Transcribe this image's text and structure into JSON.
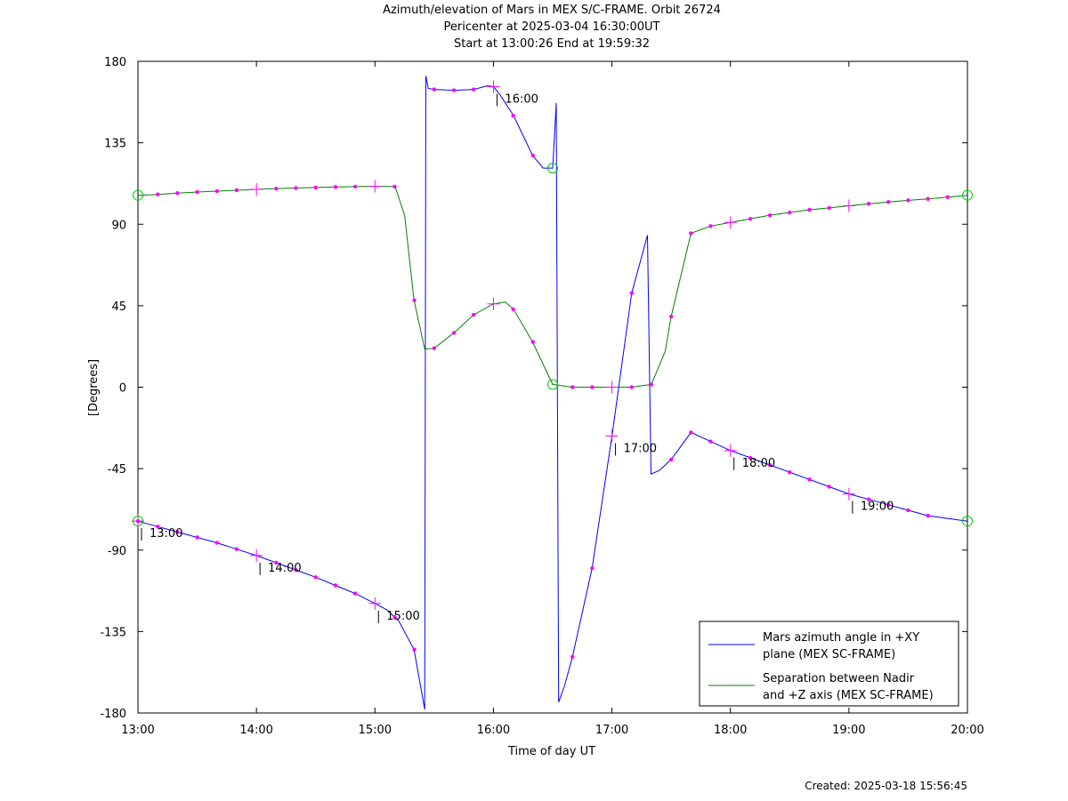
{
  "chart_data": {
    "type": "line",
    "title": "Azimuth/elevation of Mars in MEX S/C-FRAME.  Orbit 26724",
    "subtitle_lines": [
      "Pericenter at 2025-03-04 16:30:00UT",
      "Start at 13:00:26 End at 19:59:32"
    ],
    "xlabel": "Time of day UT",
    "ylabel": "[Degrees]",
    "xlim": [
      13.0,
      20.0
    ],
    "ylim": [
      -180,
      180
    ],
    "x_ticks": [
      {
        "value": 13,
        "label": "13:00"
      },
      {
        "value": 14,
        "label": "14:00"
      },
      {
        "value": 15,
        "label": "15:00"
      },
      {
        "value": 16,
        "label": "16:00"
      },
      {
        "value": 17,
        "label": "17:00"
      },
      {
        "value": 18,
        "label": "18:00"
      },
      {
        "value": 19,
        "label": "19:00"
      },
      {
        "value": 20,
        "label": "20:00"
      }
    ],
    "y_ticks": [
      {
        "value": 180,
        "label": "180"
      },
      {
        "value": 135,
        "label": "135"
      },
      {
        "value": 90,
        "label": "90"
      },
      {
        "value": 45,
        "label": "45"
      },
      {
        "value": 0,
        "label": "0"
      },
      {
        "value": -45,
        "label": "-45"
      },
      {
        "value": -90,
        "label": "-90"
      },
      {
        "value": -135,
        "label": "-135"
      },
      {
        "value": -180,
        "label": "-180"
      }
    ],
    "grid": false,
    "legend_position": "bottom-right",
    "series": [
      {
        "name": "Mars azimuth angle in +XY plane (MEX SC-FRAME)",
        "legend_lines": [
          "Mars azimuth angle in +XY",
          "plane (MEX SC-FRAME)"
        ],
        "color": "#0000ff",
        "points": [
          [
            13.0,
            -74
          ],
          [
            13.167,
            -77
          ],
          [
            13.333,
            -80
          ],
          [
            13.5,
            -83
          ],
          [
            13.667,
            -86
          ],
          [
            13.833,
            -89.5
          ],
          [
            14.0,
            -93
          ],
          [
            14.167,
            -97
          ],
          [
            14.333,
            -101
          ],
          [
            14.5,
            -105
          ],
          [
            14.667,
            -109.5
          ],
          [
            14.833,
            -114
          ],
          [
            15.0,
            -119.5
          ],
          [
            15.1,
            -123
          ],
          [
            15.2,
            -129
          ],
          [
            15.33,
            -145
          ],
          [
            15.42,
            -178
          ],
          [
            15.43,
            172
          ],
          [
            15.45,
            165
          ],
          [
            15.5,
            164.5
          ],
          [
            15.667,
            164
          ],
          [
            15.833,
            164.5
          ],
          [
            15.95,
            166.5
          ],
          [
            16.0,
            166
          ],
          [
            16.05,
            162
          ],
          [
            16.17,
            150
          ],
          [
            16.33,
            128
          ],
          [
            16.42,
            121
          ],
          [
            16.5,
            121
          ],
          [
            16.53,
            157
          ],
          [
            16.55,
            -174
          ],
          [
            16.6,
            -165
          ],
          [
            16.667,
            -149
          ],
          [
            16.833,
            -100
          ],
          [
            17.0,
            -27
          ],
          [
            17.167,
            52
          ],
          [
            17.3,
            84
          ],
          [
            17.33,
            -48
          ],
          [
            17.4,
            -46
          ],
          [
            17.5,
            -40
          ],
          [
            17.667,
            -25
          ],
          [
            17.833,
            -30
          ],
          [
            18.0,
            -35
          ],
          [
            18.167,
            -39
          ],
          [
            18.333,
            -43
          ],
          [
            18.5,
            -47
          ],
          [
            18.667,
            -51
          ],
          [
            18.833,
            -55
          ],
          [
            19.0,
            -59
          ],
          [
            19.167,
            -62
          ],
          [
            19.333,
            -65
          ],
          [
            19.5,
            -68
          ],
          [
            19.667,
            -71
          ],
          [
            20.0,
            -74
          ]
        ],
        "markers": [
          [
            13.0,
            -74
          ],
          [
            13.167,
            -77
          ],
          [
            13.333,
            -80
          ],
          [
            13.5,
            -83
          ],
          [
            13.667,
            -86
          ],
          [
            13.833,
            -89.5
          ],
          [
            14.167,
            -97
          ],
          [
            14.333,
            -101
          ],
          [
            14.5,
            -105
          ],
          [
            14.667,
            -109.5
          ],
          [
            14.833,
            -114
          ],
          [
            15.167,
            -127
          ],
          [
            15.333,
            -145
          ],
          [
            15.5,
            164.5
          ],
          [
            15.667,
            164
          ],
          [
            15.833,
            164.5
          ],
          [
            16.167,
            150
          ],
          [
            16.333,
            128
          ],
          [
            16.667,
            -149
          ],
          [
            16.833,
            -100
          ],
          [
            17.167,
            52
          ],
          [
            17.5,
            -40
          ],
          [
            17.667,
            -25
          ],
          [
            17.833,
            -30
          ],
          [
            18.167,
            -39
          ],
          [
            18.333,
            -43
          ],
          [
            18.5,
            -47
          ],
          [
            18.667,
            -51
          ],
          [
            18.833,
            -55
          ],
          [
            19.167,
            -62
          ],
          [
            19.333,
            -65
          ],
          [
            19.5,
            -68
          ],
          [
            19.667,
            -71
          ]
        ],
        "hour_markers": [
          {
            "x": 13.0,
            "y": -74,
            "label": "13:00"
          },
          {
            "x": 14.0,
            "y": -93,
            "label": "14:00"
          },
          {
            "x": 15.0,
            "y": -119.5,
            "label": "15:00"
          },
          {
            "x": 16.0,
            "y": 166,
            "label": "16:00"
          },
          {
            "x": 17.0,
            "y": -27,
            "label": "17:00"
          },
          {
            "x": 18.0,
            "y": -35,
            "label": "18:00"
          },
          {
            "x": 19.0,
            "y": -59,
            "label": "19:00"
          }
        ],
        "circles": [
          [
            13.0,
            -74
          ],
          [
            16.5,
            121
          ],
          [
            20.0,
            -74
          ]
        ]
      },
      {
        "name": "Separation between Nadir and +Z axis (MEX SC-FRAME)",
        "legend_lines": [
          "Separation between Nadir",
          "and +Z axis (MEX SC-FRAME)"
        ],
        "color": "#008000",
        "points": [
          [
            13.0,
            106
          ],
          [
            13.167,
            106.5
          ],
          [
            13.333,
            107.2
          ],
          [
            13.5,
            107.8
          ],
          [
            13.667,
            108.3
          ],
          [
            13.833,
            108.8
          ],
          [
            14.0,
            109.3
          ],
          [
            14.167,
            109.7
          ],
          [
            14.333,
            110
          ],
          [
            14.5,
            110.3
          ],
          [
            14.667,
            110.6
          ],
          [
            14.833,
            110.8
          ],
          [
            15.0,
            111
          ],
          [
            15.17,
            110.8
          ],
          [
            15.25,
            95
          ],
          [
            15.33,
            48
          ],
          [
            15.42,
            21
          ],
          [
            15.5,
            21.5
          ],
          [
            15.667,
            30
          ],
          [
            15.833,
            40
          ],
          [
            16.0,
            46
          ],
          [
            16.1,
            47
          ],
          [
            16.17,
            43
          ],
          [
            16.33,
            25
          ],
          [
            16.5,
            1.5
          ],
          [
            16.667,
            0
          ],
          [
            16.833,
            0
          ],
          [
            17.0,
            0
          ],
          [
            17.167,
            0
          ],
          [
            17.333,
            1.5
          ],
          [
            17.45,
            20
          ],
          [
            17.5,
            39
          ],
          [
            17.667,
            85
          ],
          [
            17.833,
            89
          ],
          [
            18.0,
            91
          ],
          [
            18.167,
            93
          ],
          [
            18.333,
            95
          ],
          [
            18.5,
            96.5
          ],
          [
            18.667,
            98
          ],
          [
            18.833,
            99
          ],
          [
            19.0,
            100.2
          ],
          [
            19.167,
            101.3
          ],
          [
            19.333,
            102.3
          ],
          [
            19.5,
            103.2
          ],
          [
            19.667,
            104
          ],
          [
            19.833,
            105
          ],
          [
            20.0,
            106
          ]
        ],
        "markers": [
          [
            13.167,
            106.5
          ],
          [
            13.333,
            107.2
          ],
          [
            13.5,
            107.8
          ],
          [
            13.667,
            108.3
          ],
          [
            13.833,
            108.8
          ],
          [
            14.167,
            109.7
          ],
          [
            14.333,
            110
          ],
          [
            14.5,
            110.3
          ],
          [
            14.667,
            110.6
          ],
          [
            14.833,
            110.8
          ],
          [
            15.167,
            110.8
          ],
          [
            15.333,
            48
          ],
          [
            15.5,
            21.5
          ],
          [
            15.667,
            30
          ],
          [
            15.833,
            40
          ],
          [
            16.167,
            43
          ],
          [
            16.333,
            25
          ],
          [
            16.667,
            0
          ],
          [
            16.833,
            0
          ],
          [
            17.167,
            0
          ],
          [
            17.333,
            1.5
          ],
          [
            17.5,
            39
          ],
          [
            17.667,
            85
          ],
          [
            17.833,
            89
          ],
          [
            18.167,
            93
          ],
          [
            18.333,
            95
          ],
          [
            18.5,
            96.5
          ],
          [
            18.667,
            98
          ],
          [
            18.833,
            99
          ],
          [
            19.167,
            101.3
          ],
          [
            19.333,
            102.3
          ],
          [
            19.5,
            103.2
          ],
          [
            19.667,
            104
          ],
          [
            19.833,
            105
          ]
        ],
        "hour_markers": [
          {
            "x": 14.0,
            "y": 109.3
          },
          {
            "x": 15.0,
            "y": 111
          },
          {
            "x": 16.0,
            "y": 46
          },
          {
            "x": 17.0,
            "y": 0
          },
          {
            "x": 18.0,
            "y": 91
          },
          {
            "x": 19.0,
            "y": 100.2
          }
        ],
        "circles": [
          [
            13.0,
            106
          ],
          [
            16.5,
            1.5
          ],
          [
            20.0,
            106
          ]
        ]
      }
    ],
    "colors": {
      "marker": "#ff00ff",
      "circle": "#00cc00",
      "axes": "#000000"
    }
  },
  "footer": {
    "created": "Created: 2025-03-18 15:56:45"
  }
}
